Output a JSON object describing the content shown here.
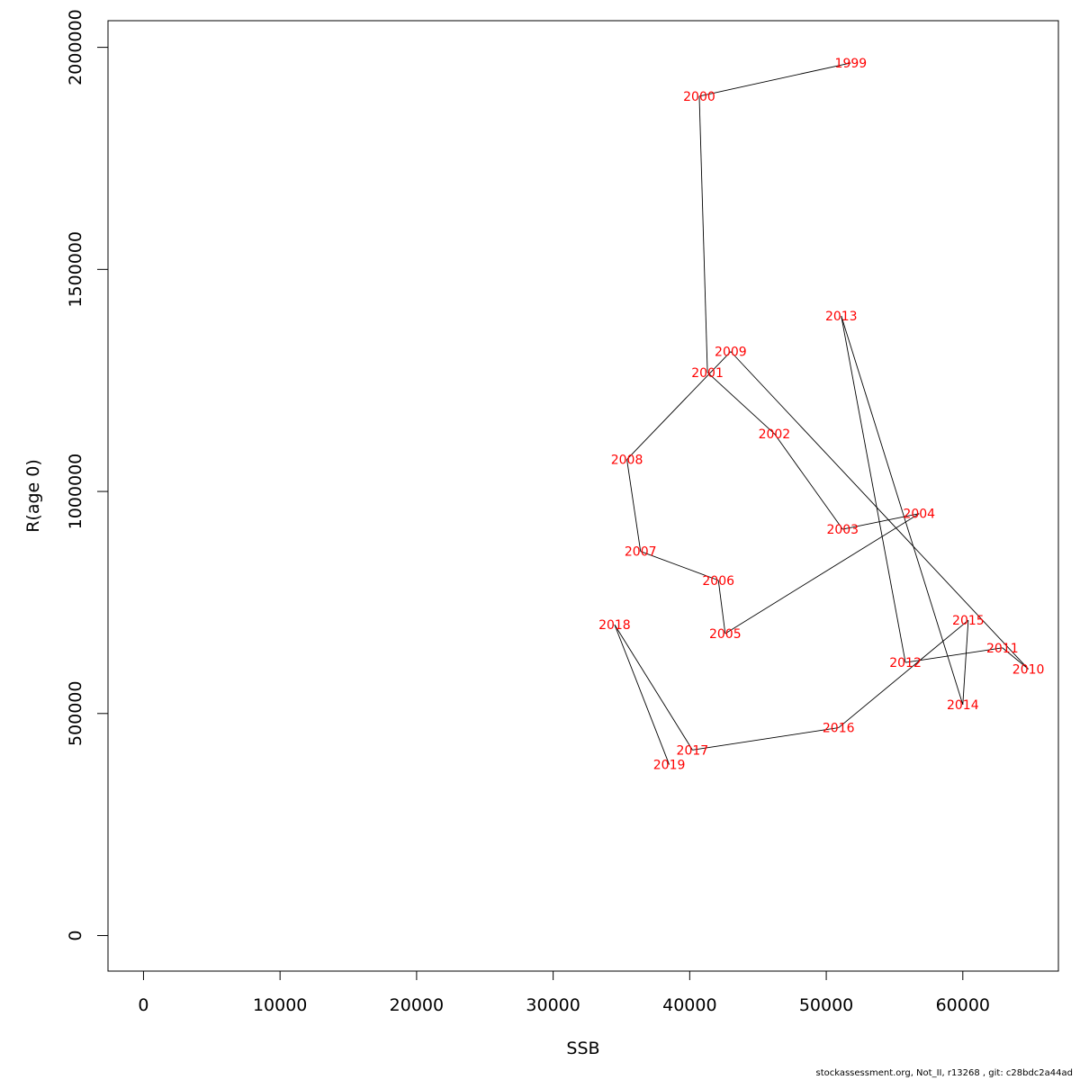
{
  "chart_data": {
    "type": "line",
    "title": "",
    "xlabel": "SSB",
    "ylabel": "R(age 0)",
    "xlim": [
      -2600,
      67000
    ],
    "ylim": [
      -80000,
      2060000
    ],
    "x_ticks": [
      0,
      10000,
      20000,
      30000,
      40000,
      50000,
      60000
    ],
    "x_tick_labels": [
      "0",
      "10000",
      "20000",
      "30000",
      "40000",
      "50000",
      "60000"
    ],
    "y_ticks": [
      0,
      500000,
      1000000,
      1500000,
      2000000
    ],
    "y_tick_labels": [
      "0",
      "500000",
      "1000000",
      "1500000",
      "2000000"
    ],
    "grid": false,
    "line_color": "#000000",
    "label_color": "#ff0000",
    "points": [
      {
        "year": "1999",
        "x": 51800,
        "y": 1965000
      },
      {
        "year": "2000",
        "x": 40700,
        "y": 1890000
      },
      {
        "year": "2001",
        "x": 41300,
        "y": 1268000
      },
      {
        "year": "2002",
        "x": 46200,
        "y": 1130000
      },
      {
        "year": "2003",
        "x": 51200,
        "y": 915000
      },
      {
        "year": "2004",
        "x": 56800,
        "y": 950000
      },
      {
        "year": "2005",
        "x": 42600,
        "y": 680000
      },
      {
        "year": "2006",
        "x": 42100,
        "y": 800000
      },
      {
        "year": "2007",
        "x": 36400,
        "y": 865000
      },
      {
        "year": "2008",
        "x": 35400,
        "y": 1072000
      },
      {
        "year": "2009",
        "x": 43000,
        "y": 1315000
      },
      {
        "year": "2010",
        "x": 64800,
        "y": 600000
      },
      {
        "year": "2011",
        "x": 62900,
        "y": 648000
      },
      {
        "year": "2012",
        "x": 55800,
        "y": 615000
      },
      {
        "year": "2013",
        "x": 51100,
        "y": 1395000
      },
      {
        "year": "2014",
        "x": 60000,
        "y": 520000
      },
      {
        "year": "2015",
        "x": 60400,
        "y": 710000
      },
      {
        "year": "2016",
        "x": 50900,
        "y": 468000
      },
      {
        "year": "2017",
        "x": 40200,
        "y": 418000
      },
      {
        "year": "2018",
        "x": 34500,
        "y": 700000
      },
      {
        "year": "2019",
        "x": 38500,
        "y": 385000
      }
    ]
  },
  "footer": "stockassessment.org, Not_II, r13268 , git: c28bdc2a44ad"
}
